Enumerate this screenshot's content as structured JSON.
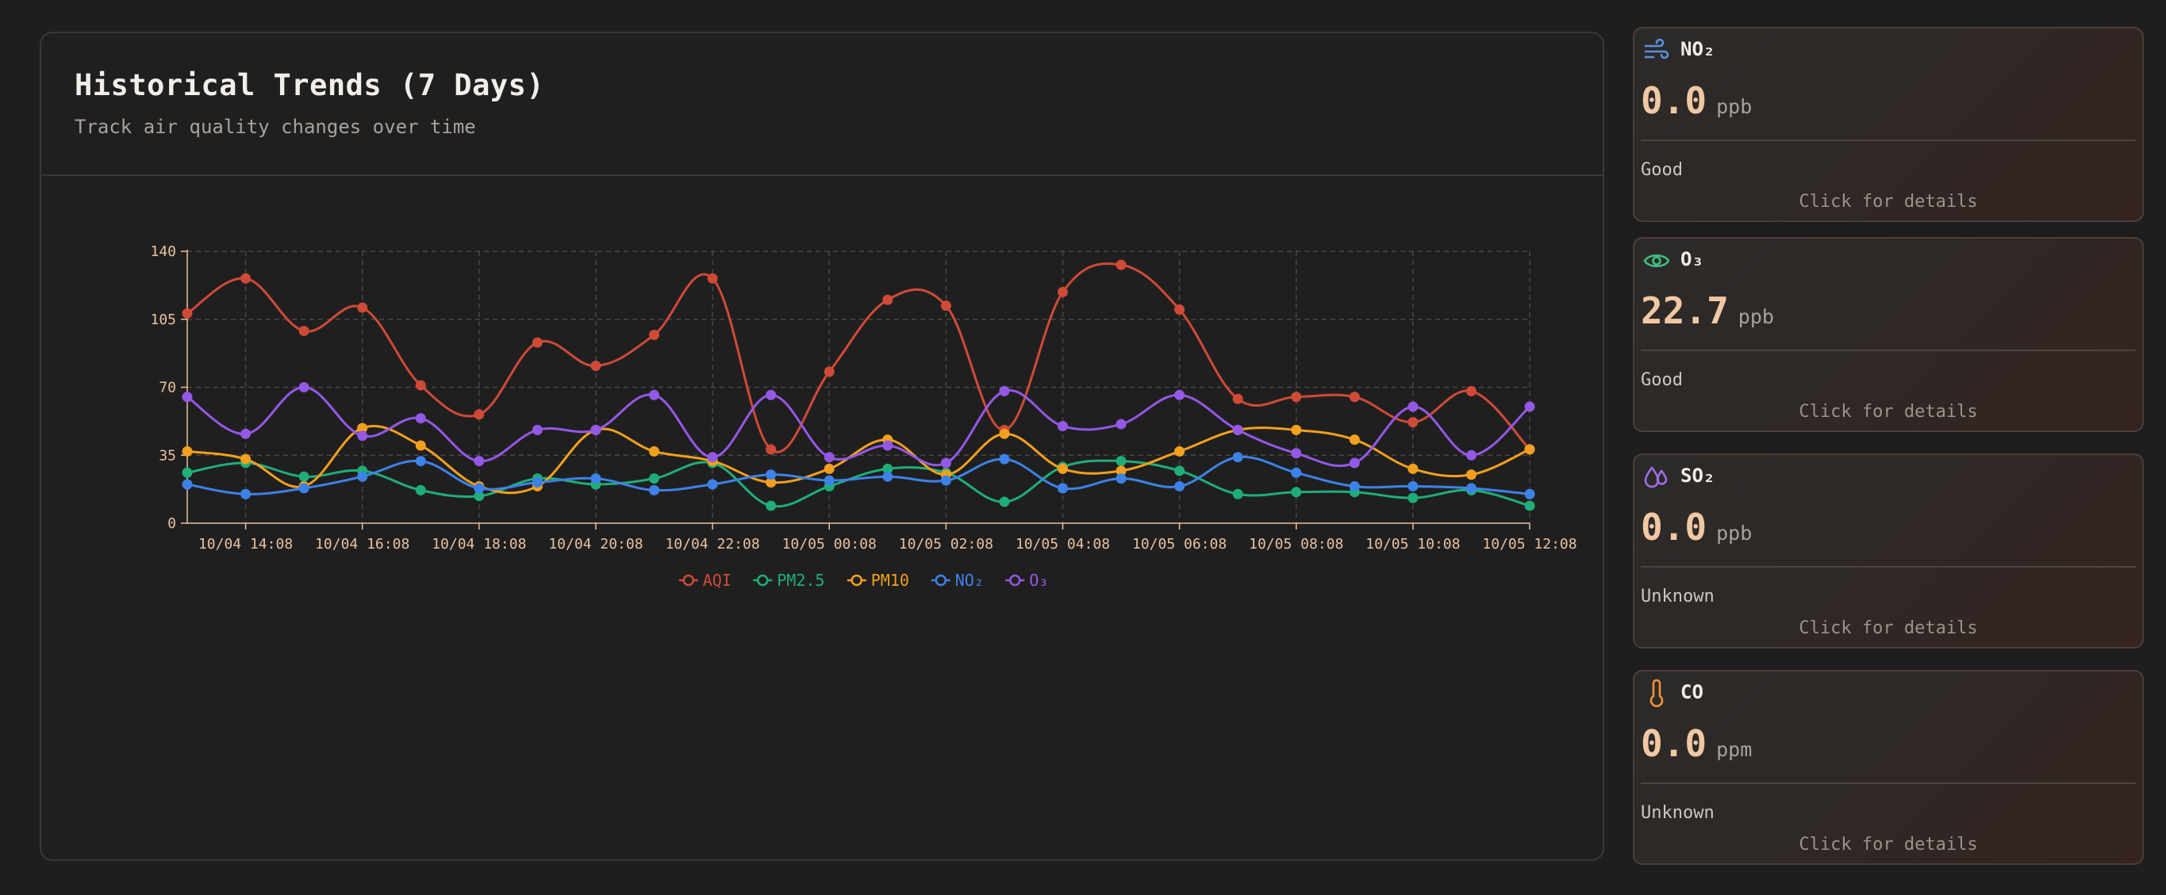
{
  "chart_panel": {
    "title": "Historical Trends (7 Days)",
    "subtitle": "Track air quality changes over time"
  },
  "chart_data": {
    "type": "line",
    "x": [
      "10/04 13:08",
      "10/04 14:08",
      "10/04 15:08",
      "10/04 16:08",
      "10/04 17:08",
      "10/04 18:08",
      "10/04 19:08",
      "10/04 20:08",
      "10/04 21:08",
      "10/04 22:08",
      "10/04 23:08",
      "10/05 00:08",
      "10/05 01:08",
      "10/05 02:08",
      "10/05 03:08",
      "10/05 04:08",
      "10/05 05:08",
      "10/05 06:08",
      "10/05 07:08",
      "10/05 08:08",
      "10/05 09:08",
      "10/05 10:08",
      "10/05 11:08",
      "10/05 12:08"
    ],
    "x_tick_labels": [
      "10/04 14:08",
      "10/04 16:08",
      "10/04 18:08",
      "10/04 20:08",
      "10/04 22:08",
      "10/05 00:08",
      "10/05 02:08",
      "10/05 04:08",
      "10/05 06:08",
      "10/05 08:08",
      "10/05 10:08",
      "10/05 12:08"
    ],
    "y_ticks": [
      0,
      35,
      70,
      105,
      140
    ],
    "ylim": [
      0,
      140
    ],
    "grid": true,
    "legend_position": "bottom-center",
    "series": [
      {
        "name": "AQI",
        "color": "#cf4a37",
        "values": [
          108,
          126,
          99,
          111,
          71,
          56,
          93,
          81,
          97,
          126,
          38,
          78,
          115,
          112,
          48,
          119,
          133,
          110,
          64,
          65,
          65,
          52,
          68,
          38
        ]
      },
      {
        "name": "PM2.5",
        "color": "#1fae77",
        "values": [
          26,
          31,
          24,
          27,
          17,
          14,
          23,
          20,
          23,
          31,
          9,
          19,
          28,
          26,
          11,
          29,
          32,
          27,
          15,
          16,
          16,
          13,
          17,
          9
        ]
      },
      {
        "name": "PM10",
        "color": "#f2a01e",
        "values": [
          37,
          33,
          19,
          49,
          40,
          19,
          19,
          48,
          37,
          32,
          21,
          28,
          43,
          25,
          46,
          28,
          27,
          37,
          48,
          48,
          43,
          28,
          25,
          38
        ]
      },
      {
        "name": "NO₂",
        "color": "#3d82e8",
        "values": [
          20,
          15,
          18,
          24,
          32,
          18,
          21,
          23,
          17,
          20,
          25,
          22,
          24,
          22,
          33,
          18,
          23,
          19,
          34,
          26,
          19,
          19,
          18,
          15
        ]
      },
      {
        "name": "O₃",
        "color": "#9458e6",
        "values": [
          65,
          46,
          70,
          45,
          54,
          32,
          48,
          48,
          66,
          34,
          66,
          34,
          40,
          31,
          68,
          50,
          51,
          66,
          48,
          36,
          31,
          60,
          35,
          60
        ]
      }
    ]
  },
  "metrics": [
    {
      "name": "NO₂",
      "icon": "wind-icon",
      "value": "0.0",
      "unit": "ppb",
      "status": "Good",
      "details": "Click for details",
      "icon_color": "#5b8fe0"
    },
    {
      "name": "O₃",
      "icon": "eye-icon",
      "value": "22.7",
      "unit": "ppb",
      "status": "Good",
      "details": "Click for details",
      "icon_color": "#3fbf82"
    },
    {
      "name": "SO₂",
      "icon": "droplets-icon",
      "value": "0.0",
      "unit": "ppb",
      "status": "Unknown",
      "details": "Click for details",
      "icon_color": "#a16de8"
    },
    {
      "name": "CO",
      "icon": "thermometer-icon",
      "value": "0.0",
      "unit": "ppm",
      "status": "Unknown",
      "details": "Click for details",
      "icon_color": "#f0913a"
    }
  ]
}
